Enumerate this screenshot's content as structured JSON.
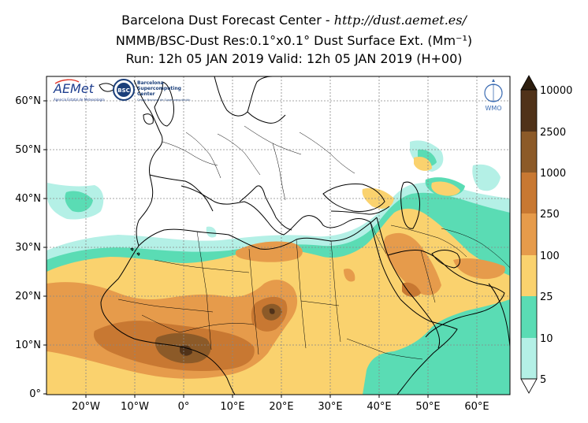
{
  "title": {
    "line1_prefix": "Barcelona Dust Forecast Center - ",
    "line1_url": "http://dust.aemet.es/",
    "line2": "NMMB/BSC-Dust   Res:0.1°x0.1°   Dust Surface Ext. (Mm⁻¹)",
    "line3": "Run: 12h 05 JAN 2019   Valid: 12h 05 JAN 2019 (H+00)"
  },
  "axes": {
    "lon_ticks": [
      "20°W",
      "10°W",
      "0°",
      "10°E",
      "20°E",
      "30°E",
      "40°E",
      "50°E",
      "60°E"
    ],
    "lat_ticks": [
      "60°N",
      "50°N",
      "40°N",
      "30°N",
      "20°N",
      "10°N",
      "0°"
    ]
  },
  "colorbar": {
    "levels": [
      "5",
      "10",
      "25",
      "100",
      "250",
      "1000",
      "2500",
      "10000"
    ],
    "colors": [
      "#b4f0e6",
      "#5adcb4",
      "#fad26e",
      "#e69b4b",
      "#c87832",
      "#8c5a28",
      "#503219",
      "#2d1e0f"
    ]
  },
  "logos": {
    "aemet": "AEMet",
    "aemet_sub": "Agencia Estatal de Meteorología",
    "bsc": "BSC",
    "bsc_text_1": "Barcelona",
    "bsc_text_2": "Supercomputing",
    "bsc_text_3": "Center",
    "bsc_sub": "Centro Nacional de Supercomputación",
    "wmo": "WMO"
  },
  "colors": {
    "c5": "#b4f0e6",
    "c10": "#5adcb4",
    "c25": "#fad26e",
    "c100": "#e69b4b",
    "c250": "#c87832",
    "c1000": "#8c5a28",
    "c2500": "#503219",
    "c10000": "#2d1e0f"
  }
}
